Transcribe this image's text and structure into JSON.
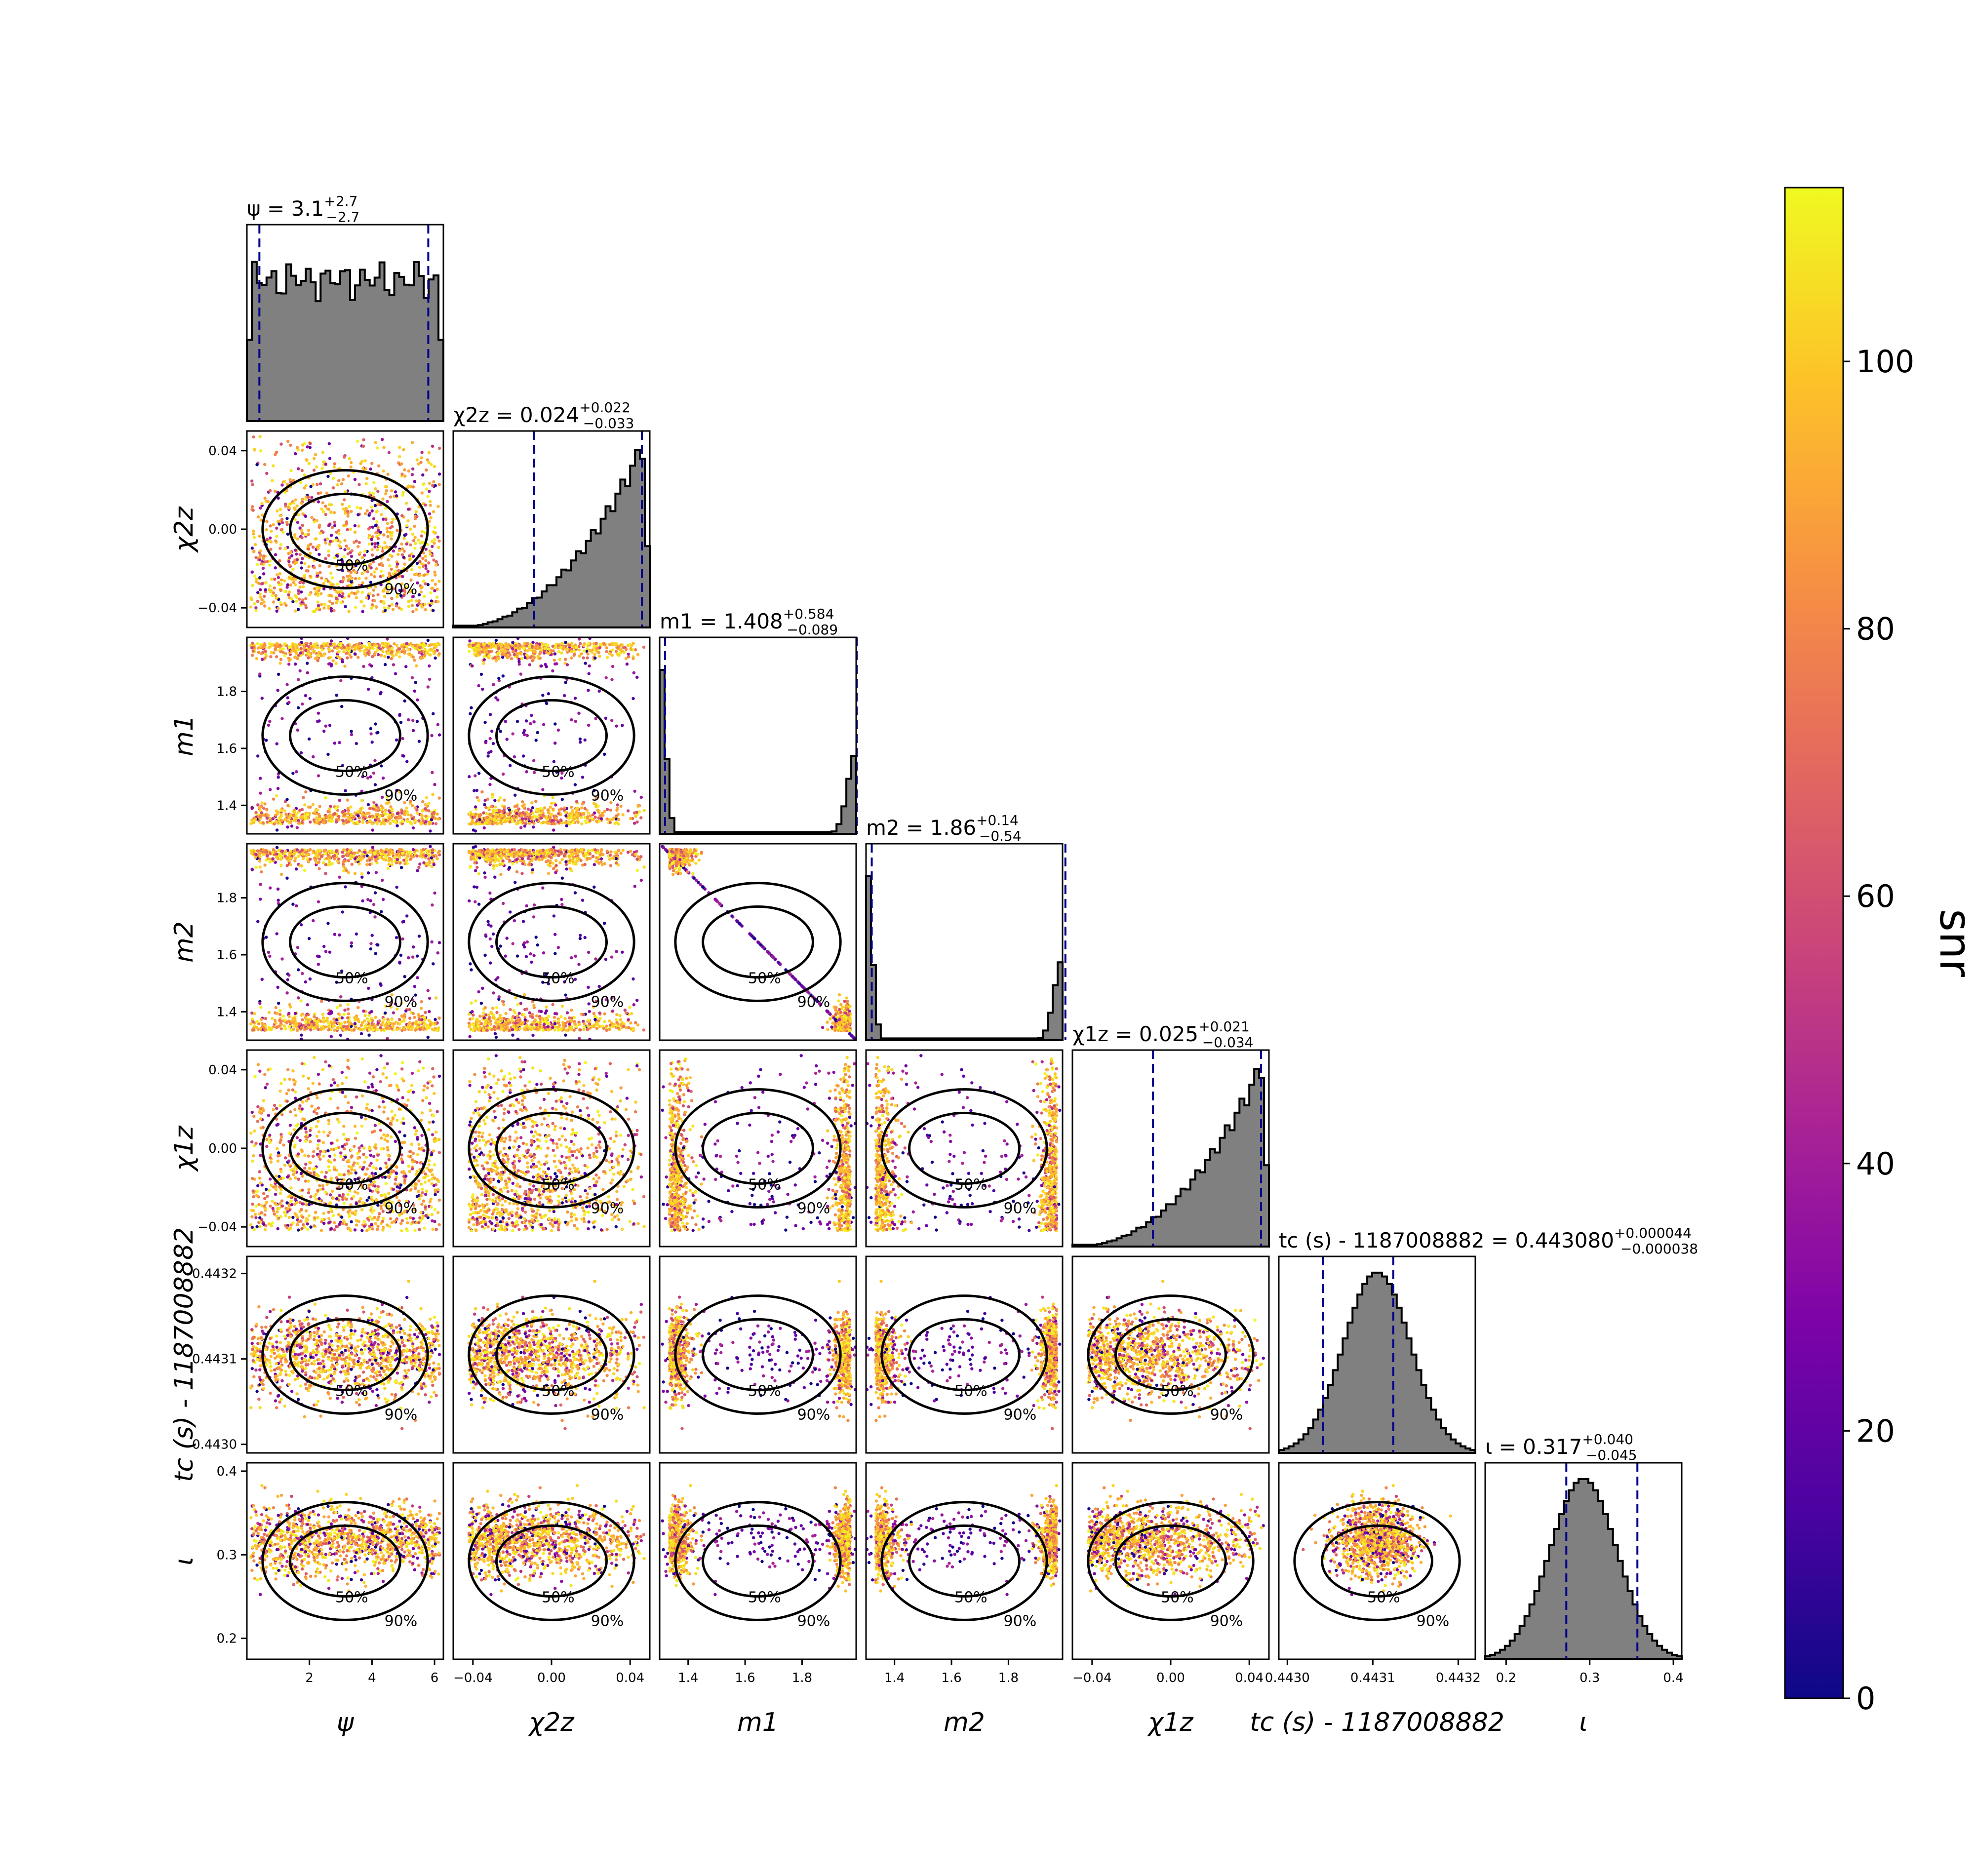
{
  "chart_data": {
    "type": "corner",
    "parameters": [
      {
        "key": "psi",
        "label": "ψ",
        "range": [
          0,
          6.283
        ],
        "ticks": [
          2,
          4,
          6
        ],
        "tick_labels": [
          "2",
          "4",
          "6"
        ],
        "title_main": "ψ = 3.1",
        "title_plus": "+2.7",
        "title_minus": "−2.7",
        "ci": [
          0.4,
          5.8
        ],
        "hist": "uniform"
      },
      {
        "key": "chi2z",
        "label": "χ2z",
        "range": [
          -0.05,
          0.05
        ],
        "ticks": [
          -0.04,
          0,
          0.04
        ],
        "tick_labels": [
          "−0.04",
          "0.00",
          "0.04"
        ],
        "title_main": "χ2z = 0.024",
        "title_plus": "+0.022",
        "title_minus": "−0.033",
        "ci": [
          -0.009,
          0.046
        ],
        "hist": "rising"
      },
      {
        "key": "m1",
        "label": "m1",
        "range": [
          1.3,
          1.99
        ],
        "ticks": [
          1.4,
          1.6,
          1.8
        ],
        "tick_labels": [
          "1.4",
          "1.6",
          "1.8"
        ],
        "title_main": "m1 = 1.408",
        "title_plus": "+0.584",
        "title_minus": "−0.089",
        "ci": [
          1.319,
          1.992
        ],
        "hist": "bimodal"
      },
      {
        "key": "m2",
        "label": "m2",
        "range": [
          1.3,
          1.99
        ],
        "ticks": [
          1.4,
          1.6,
          1.8
        ],
        "tick_labels": [
          "1.4",
          "1.6",
          "1.8"
        ],
        "title_main": "m2 = 1.86",
        "title_plus": "+0.14",
        "title_minus": "−0.54",
        "ci": [
          1.32,
          2.0
        ],
        "hist": "bimodal"
      },
      {
        "key": "chi1z",
        "label": "χ1z",
        "range": [
          -0.05,
          0.05
        ],
        "ticks": [
          -0.04,
          0,
          0.04
        ],
        "tick_labels": [
          "−0.04",
          "0.00",
          "0.04"
        ],
        "title_main": "χ1z = 0.025",
        "title_plus": "+0.021",
        "title_minus": "−0.034",
        "ci": [
          -0.009,
          0.046
        ],
        "hist": "rising"
      },
      {
        "key": "tc",
        "label": "tc (s) - 1187008882",
        "range": [
          0.44299,
          0.44322
        ],
        "ticks": [
          0.443,
          0.4431,
          0.4432
        ],
        "tick_labels": [
          "0.4430",
          "0.4431",
          "0.4432"
        ],
        "title_main": "tc (s) - 1187008882 = 0.443080",
        "title_plus": "+0.000044",
        "title_minus": "−0.000038",
        "ci": [
          0.443042,
          0.443124
        ],
        "hist": "gauss"
      },
      {
        "key": "iota",
        "label": "ι",
        "range": [
          0.175,
          0.41
        ],
        "ticks": [
          0.2,
          0.3,
          0.4
        ],
        "tick_labels": [
          "0.2",
          "0.3",
          "0.4"
        ],
        "title_main": "ι = 0.317",
        "title_plus": "+0.040",
        "title_minus": "−0.045",
        "ci": [
          0.272,
          0.357
        ],
        "hist": "gauss"
      }
    ],
    "contour_levels": [
      "50%",
      "90%"
    ],
    "colorbar": {
      "label": "snr",
      "range": [
        0,
        113
      ],
      "ticks": [
        0,
        20,
        40,
        60,
        80,
        100
      ],
      "tick_labels": [
        "0",
        "20",
        "40",
        "60",
        "80",
        "100"
      ],
      "colormap": "plasma"
    },
    "colors": {
      "hist_fill": "#808080",
      "ci_line": "#00008b",
      "contour": "#000000"
    }
  }
}
